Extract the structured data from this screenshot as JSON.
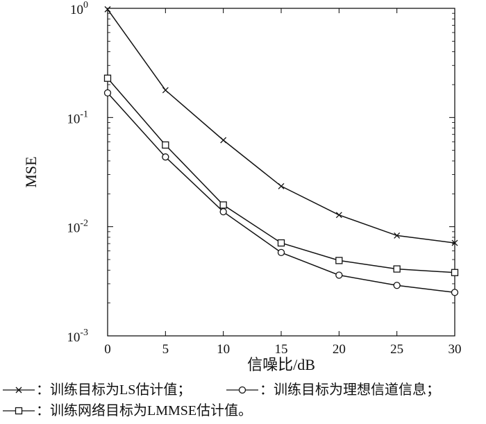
{
  "chart_data": {
    "type": "line",
    "title": "",
    "xlabel": "信噪比/dB",
    "ylabel": "MSE",
    "x": [
      0,
      5,
      10,
      15,
      20,
      25,
      30
    ],
    "xlim": [
      0,
      30
    ],
    "ylim": [
      0.001,
      1
    ],
    "y_scale": "log",
    "x_ticks": [
      "0",
      "5",
      "10",
      "15",
      "20",
      "25",
      "30"
    ],
    "y_ticks": [
      {
        "base": "10",
        "exp": "0",
        "value": 1
      },
      {
        "base": "10",
        "exp": "-1",
        "value": 0.1
      },
      {
        "base": "10",
        "exp": "-2",
        "value": 0.01
      },
      {
        "base": "10",
        "exp": "-3",
        "value": 0.001
      }
    ],
    "grid": false,
    "series": [
      {
        "name": "训练目标为LS估计值；",
        "marker": "x",
        "values": [
          0.98,
          0.178,
          0.062,
          0.0235,
          0.0128,
          0.0083,
          0.0071
        ]
      },
      {
        "name": "训练目标为理想信道信息；",
        "marker": "o",
        "values": [
          0.168,
          0.0435,
          0.0137,
          0.0058,
          0.0036,
          0.0029,
          0.0025
        ]
      },
      {
        "name": "训练网络目标为LMMSE估计值。",
        "marker": "square",
        "values": [
          0.229,
          0.056,
          0.0158,
          0.0071,
          0.0049,
          0.0041,
          0.0038
        ]
      }
    ],
    "legend": {
      "placement": "bottom",
      "separator": "："
    },
    "colors": {
      "line": "#111111",
      "axis": "#000000",
      "background": "#ffffff"
    }
  }
}
